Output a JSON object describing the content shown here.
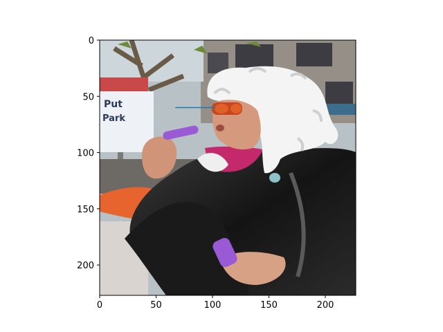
{
  "figure": {
    "kind": "image-with-axes",
    "image_description_icon": "photo-person-white-wig-black-robe-bubbles"
  },
  "chart_data": {
    "type": "image",
    "title": "",
    "xlabel": "",
    "ylabel": "",
    "xlim": [
      0,
      227
    ],
    "ylim": [
      227,
      0
    ],
    "x_ticks": [
      0,
      50,
      100,
      150,
      200
    ],
    "y_ticks": [
      0,
      50,
      100,
      150,
      200
    ],
    "grid": false,
    "legend": "none",
    "series": [
      {
        "values": [
          [
            67,
            60
          ],
          [
            103,
            60
          ]
        ],
        "color": "#1f77b4"
      }
    ]
  },
  "colors": {
    "axis": "#000000",
    "line": "#1f77b4",
    "sky": "#c9d6dd",
    "building": "#8f8a86",
    "wig": "#f4f4f4",
    "robe": "#1d1d1d",
    "skin": "#d59a7e",
    "scarf": "#c3296b",
    "bottle": "#9a5ad6",
    "orange": "#e8642e",
    "sign": "#eef2f6"
  }
}
